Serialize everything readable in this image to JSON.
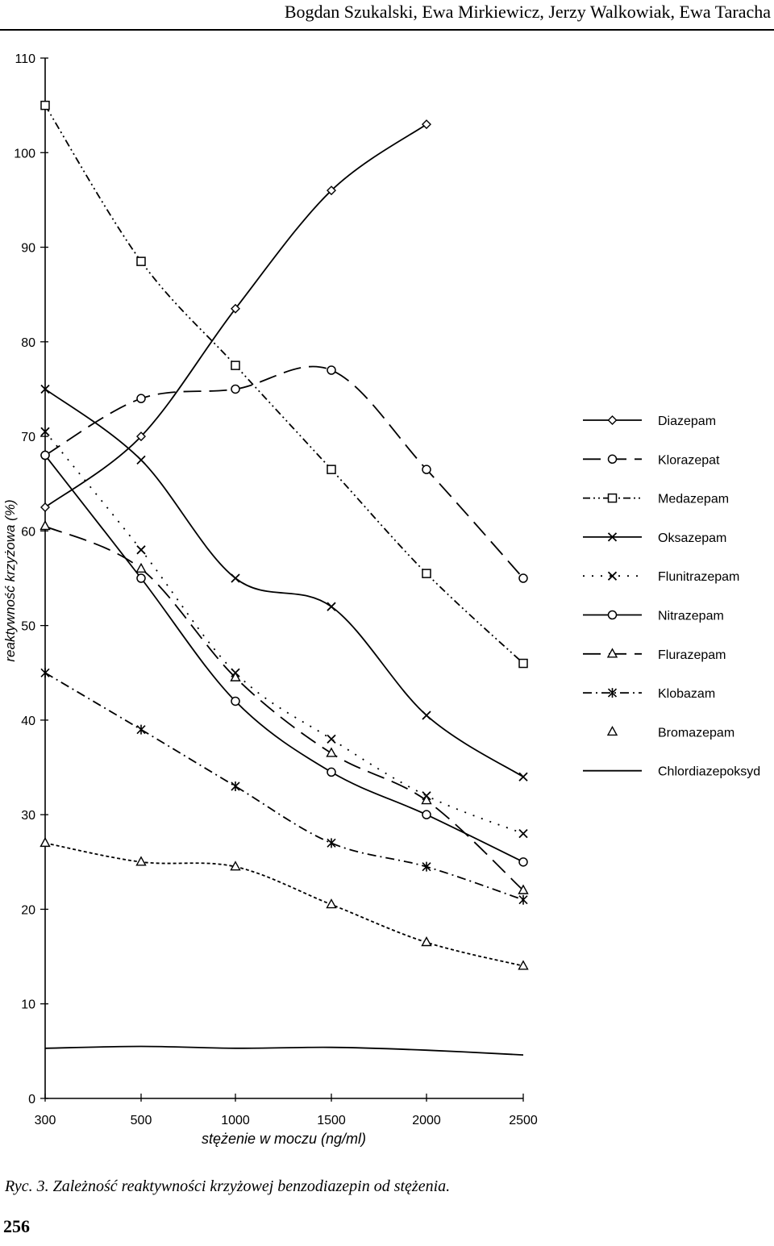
{
  "header": {
    "authors": "Bogdan Szukalski, Ewa Mirkiewicz, Jerzy Walkowiak, Ewa Taracha"
  },
  "caption": "Ryc. 3. Zależność reaktywności krzyżowej benzodiazepin od stężenia.",
  "page_number": "256",
  "chart_data": {
    "type": "line",
    "title": "",
    "xlabel": "stężenie w moczu (ng/ml)",
    "ylabel": "reaktywność krzyżowa (%)",
    "categories": [
      "300",
      "500",
      "1000",
      "1500",
      "2000",
      "2500"
    ],
    "ylim": [
      0,
      110
    ],
    "yticks": [
      0,
      10,
      20,
      30,
      40,
      50,
      60,
      70,
      80,
      90,
      100,
      110
    ],
    "grid": false,
    "legend_position": "right",
    "series": [
      {
        "name": "Diazepam",
        "marker": "diamond",
        "dash": "solid",
        "values": [
          62.5,
          70,
          83.5,
          96,
          103,
          null
        ]
      },
      {
        "name": "Klorazepat",
        "marker": "circle",
        "dash": "longdash",
        "values": [
          68,
          74,
          75,
          77,
          66.5,
          55
        ]
      },
      {
        "name": "Medazepam",
        "marker": "square",
        "dash": "dashdotdot",
        "values": [
          105,
          88.5,
          77.5,
          66.5,
          55.5,
          46
        ]
      },
      {
        "name": "Oksazepam",
        "marker": "x",
        "dash": "solid",
        "values": [
          75,
          67.5,
          55,
          52,
          40.5,
          34
        ]
      },
      {
        "name": "Flunitrazepam",
        "marker": "x",
        "dash": "dotted",
        "values": [
          70.5,
          58,
          45,
          38,
          32,
          28
        ]
      },
      {
        "name": "Nitrazepam",
        "marker": "circle",
        "dash": "solid",
        "values": [
          68,
          55,
          42,
          34.5,
          30,
          25
        ]
      },
      {
        "name": "Flurazepam",
        "marker": "triangle",
        "dash": "longdash",
        "values": [
          60.5,
          56,
          44.5,
          36.5,
          31.5,
          22
        ]
      },
      {
        "name": "Klobazam",
        "marker": "star",
        "dash": "dashdot",
        "values": [
          45,
          39,
          33,
          27,
          24.5,
          21
        ]
      },
      {
        "name": "Bromazepam",
        "marker": "triangle",
        "dash": "shortdash",
        "values": [
          27,
          25,
          24.5,
          20.5,
          16.5,
          14
        ]
      },
      {
        "name": "Chlordiazepoksyd",
        "marker": "none",
        "dash": "solid",
        "values": [
          5.3,
          5.5,
          5.3,
          5.4,
          5.1,
          4.6
        ]
      }
    ]
  }
}
